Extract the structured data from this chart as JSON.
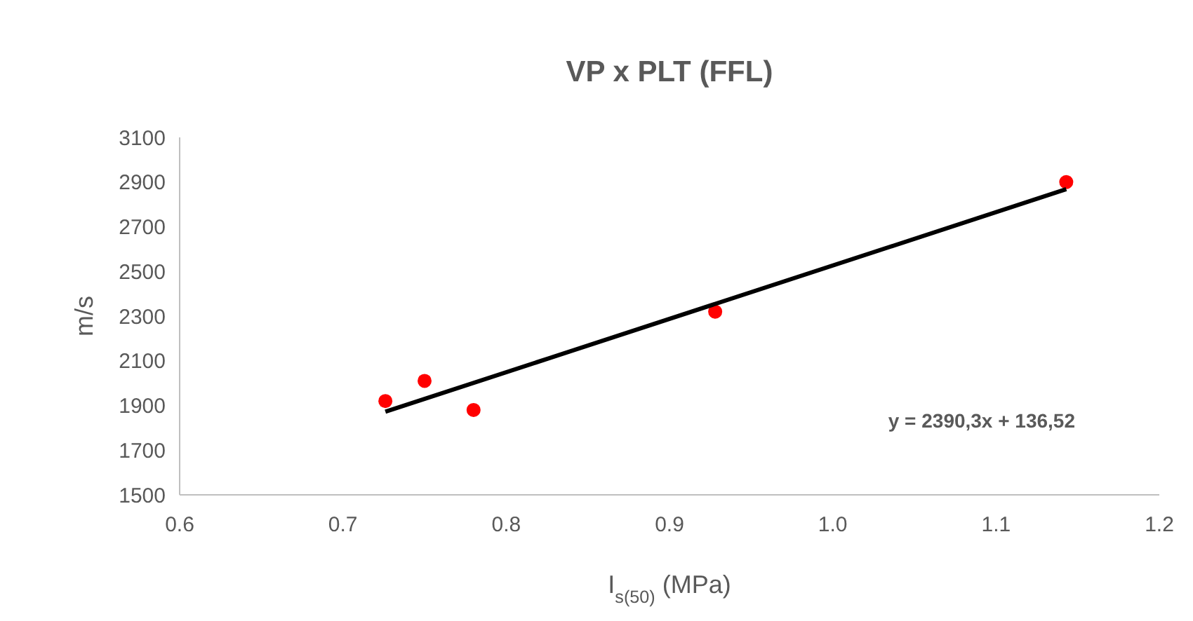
{
  "chart_data": {
    "type": "scatter",
    "title": "VP x PLT (FFL)",
    "xlabel": "I$_{s(50)}$ (MPa)",
    "ylabel": "m/s",
    "xlim": [
      0.6,
      1.2
    ],
    "ylim": [
      1500,
      3100
    ],
    "xticks": [
      0.6,
      0.7,
      0.8,
      0.9,
      {
        "value": 1,
        "label": "1.0"
      },
      1.1,
      1.2
    ],
    "yticks": [
      1500,
      1700,
      1900,
      2100,
      2300,
      2500,
      2700,
      2900,
      3100
    ],
    "grid": false,
    "marker": "circle",
    "series": [
      {
        "color": "#ff0000",
        "x": [
          0.726,
          0.75,
          0.78,
          0.928,
          1.143
        ],
        "values": [
          1920,
          2010,
          1880,
          2320,
          2900
        ]
      },
      {
        "type": "line",
        "color": "#000000",
        "x": [
          0.726,
          1.143
        ],
        "values": [
          1872,
          2868
        ],
        "marker": "none",
        "line_style": "solid"
      }
    ],
    "annotations": [
      "y = 2390,3x + 136,52"
    ]
  }
}
